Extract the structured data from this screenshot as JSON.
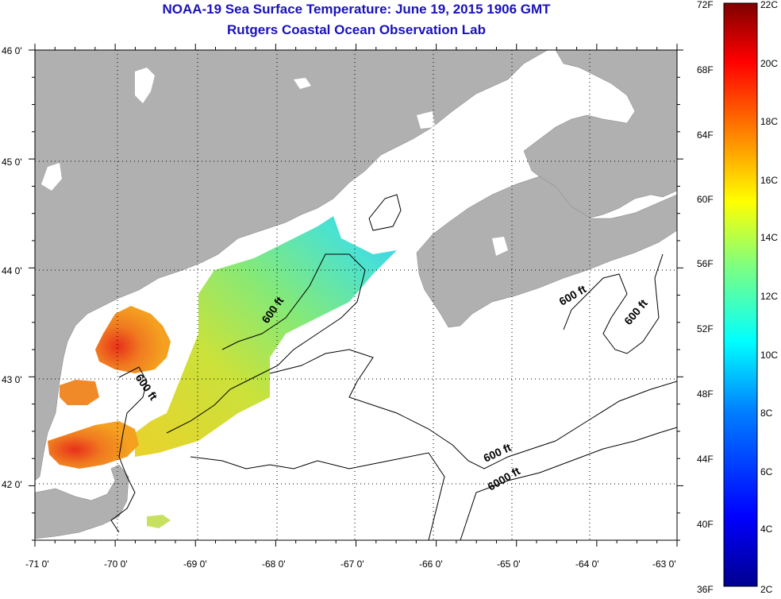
{
  "header": {
    "title": "NOAA-19 Sea Surface Temperature:  June 19, 2015 1906 GMT",
    "subtitle": "Rutgers Coastal Ocean Observation Lab"
  },
  "map": {
    "region": "Gulf of Maine",
    "lon_range": [
      -71,
      -63
    ],
    "lat_range": [
      41.5,
      46
    ],
    "lon_ticks": [
      "-71 0'",
      "-70 0'",
      "-69 0'",
      "-68 0'",
      "-67 0'",
      "-66 0'",
      "-65 0'",
      "-64 0'",
      "-63 0'"
    ],
    "lat_ticks": [
      "46 0'",
      "45 0'",
      "44 0'",
      "43 0'",
      "42 0'"
    ],
    "grid": "dotted",
    "colors": {
      "land": "#b0b0b0",
      "water": "#ffffff",
      "contour": "#000000"
    },
    "contour_labels": [
      "600 ft",
      "600 ft",
      "600 ft",
      "600 ft",
      "6000 ft"
    ]
  },
  "colorbar": {
    "fahrenheit_labels": [
      "72F",
      "68F",
      "64F",
      "60F",
      "56F",
      "52F",
      "48F",
      "44F",
      "40F",
      "36F"
    ],
    "celsius_labels": [
      "22C",
      "20C",
      "18C",
      "16C",
      "14C",
      "12C",
      "10C",
      "8C",
      "6C",
      "4C",
      "2C"
    ],
    "stops": [
      "#00008f",
      "#0000ff",
      "#007fff",
      "#00ffff",
      "#7fff7f",
      "#ffff00",
      "#ff7f00",
      "#ff0000",
      "#7f0000"
    ]
  }
}
